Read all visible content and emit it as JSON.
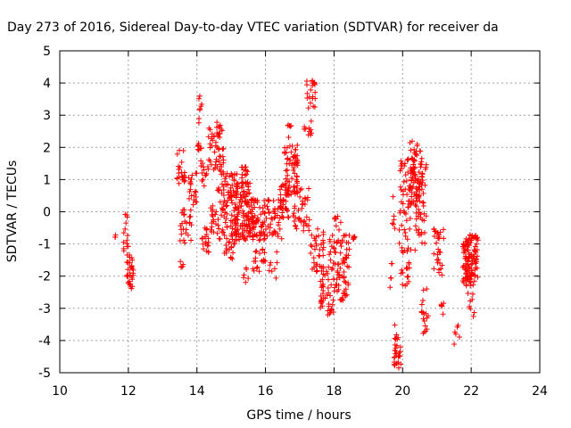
{
  "chart_data": {
    "type": "scatter",
    "title": "Day 273 of 2016, Sidereal Day-to-day VTEC variation (SDTVAR) for receiver da",
    "xlabel": "GPS time / hours",
    "ylabel": "SDTVAR / TECUs",
    "xlim": [
      10,
      24
    ],
    "ylim": [
      -5,
      5
    ],
    "xticks": [
      10,
      12,
      14,
      16,
      18,
      20,
      22,
      24
    ],
    "yticks": [
      -5,
      -4,
      -3,
      -2,
      -1,
      0,
      1,
      2,
      3,
      4,
      5
    ],
    "marker": "+",
    "colors": {
      "series": "#ff0000",
      "grid": "#a0a0a0"
    },
    "grid": true,
    "clusters": [
      {
        "x": [
          11.6,
          11.7
        ],
        "y": [
          -0.8,
          -0.7
        ],
        "n": 3
      },
      {
        "x": [
          11.85,
          12.0
        ],
        "y": [
          -1.6,
          -0.05
        ],
        "n": 18
      },
      {
        "x": [
          11.95,
          12.15
        ],
        "y": [
          -2.4,
          -1.3
        ],
        "n": 28
      },
      {
        "x": [
          13.4,
          13.65
        ],
        "y": [
          0.8,
          1.95
        ],
        "n": 22
      },
      {
        "x": [
          13.5,
          13.7
        ],
        "y": [
          -1.9,
          -1.5
        ],
        "n": 5
      },
      {
        "x": [
          13.5,
          13.85
        ],
        "y": [
          -1.0,
          0.1
        ],
        "n": 25
      },
      {
        "x": [
          13.75,
          14.0
        ],
        "y": [
          0.2,
          1.2
        ],
        "n": 20
      },
      {
        "x": [
          14.0,
          14.15
        ],
        "y": [
          1.9,
          2.2
        ],
        "n": 8
      },
      {
        "x": [
          14.05,
          14.15
        ],
        "y": [
          2.7,
          3.7
        ],
        "n": 8
      },
      {
        "x": [
          14.1,
          14.3
        ],
        "y": [
          0.8,
          1.6
        ],
        "n": 12
      },
      {
        "x": [
          14.15,
          14.4
        ],
        "y": [
          -1.35,
          -0.5
        ],
        "n": 18
      },
      {
        "x": [
          14.3,
          14.8
        ],
        "y": [
          1.2,
          2.6
        ],
        "n": 45
      },
      {
        "x": [
          14.4,
          14.6
        ],
        "y": [
          -0.7,
          0.3
        ],
        "n": 18
      },
      {
        "x": [
          14.55,
          14.7
        ],
        "y": [
          2.3,
          2.8
        ],
        "n": 10
      },
      {
        "x": [
          14.6,
          15.2
        ],
        "y": [
          -0.9,
          1.2
        ],
        "n": 90
      },
      {
        "x": [
          14.8,
          15.1
        ],
        "y": [
          -1.5,
          -0.7
        ],
        "n": 20
      },
      {
        "x": [
          15.1,
          15.55
        ],
        "y": [
          -0.9,
          0.9
        ],
        "n": 110
      },
      {
        "x": [
          15.3,
          15.5
        ],
        "y": [
          0.9,
          1.4
        ],
        "n": 15
      },
      {
        "x": [
          15.35,
          15.55
        ],
        "y": [
          -2.2,
          -1.7
        ],
        "n": 6
      },
      {
        "x": [
          15.55,
          16.0
        ],
        "y": [
          -0.9,
          0.4
        ],
        "n": 70
      },
      {
        "x": [
          15.6,
          16.0
        ],
        "y": [
          -1.9,
          -1.1
        ],
        "n": 20
      },
      {
        "x": [
          16.0,
          16.6
        ],
        "y": [
          -0.9,
          0.4
        ],
        "n": 45
      },
      {
        "x": [
          16.1,
          16.35
        ],
        "y": [
          -2.1,
          -1.2
        ],
        "n": 8
      },
      {
        "x": [
          16.4,
          16.7
        ],
        "y": [
          -0.2,
          0.9
        ],
        "n": 25
      },
      {
        "x": [
          16.55,
          16.95
        ],
        "y": [
          0.5,
          2.1
        ],
        "n": 75
      },
      {
        "x": [
          16.65,
          16.75
        ],
        "y": [
          2.1,
          2.7
        ],
        "n": 6
      },
      {
        "x": [
          16.8,
          17.0
        ],
        "y": [
          -0.6,
          0.3
        ],
        "n": 12
      },
      {
        "x": [
          17.0,
          17.3
        ],
        "y": [
          -0.6,
          0.8
        ],
        "n": 25
      },
      {
        "x": [
          17.1,
          17.35
        ],
        "y": [
          2.3,
          3.1
        ],
        "n": 10
      },
      {
        "x": [
          17.2,
          17.45
        ],
        "y": [
          3.1,
          4.15
        ],
        "n": 22
      },
      {
        "x": [
          17.3,
          17.7
        ],
        "y": [
          -1.9,
          -0.4
        ],
        "n": 35
      },
      {
        "x": [
          17.6,
          17.85
        ],
        "y": [
          -3.0,
          -1.7
        ],
        "n": 30
      },
      {
        "x": [
          17.8,
          18.0
        ],
        "y": [
          -3.3,
          -2.8
        ],
        "n": 10
      },
      {
        "x": [
          17.85,
          18.45
        ],
        "y": [
          -2.8,
          -0.7
        ],
        "n": 85
      },
      {
        "x": [
          18.0,
          18.2
        ],
        "y": [
          -0.6,
          -0.1
        ],
        "n": 8
      },
      {
        "x": [
          18.55,
          18.65
        ],
        "y": [
          -0.9,
          -0.55
        ],
        "n": 6
      },
      {
        "x": [
          19.55,
          19.7
        ],
        "y": [
          -2.6,
          -1.1
        ],
        "n": 5
      },
      {
        "x": [
          19.7,
          19.8
        ],
        "y": [
          -0.8,
          0.6
        ],
        "n": 6
      },
      {
        "x": [
          19.75,
          19.95
        ],
        "y": [
          -4.85,
          -3.4
        ],
        "n": 30
      },
      {
        "x": [
          19.9,
          20.3
        ],
        "y": [
          -1.3,
          1.8
        ],
        "n": 55
      },
      {
        "x": [
          19.95,
          20.2
        ],
        "y": [
          -2.3,
          -1.5
        ],
        "n": 15
      },
      {
        "x": [
          20.2,
          20.6
        ],
        "y": [
          0.2,
          2.2
        ],
        "n": 70
      },
      {
        "x": [
          20.35,
          20.7
        ],
        "y": [
          -1.3,
          1.5
        ],
        "n": 50
      },
      {
        "x": [
          20.55,
          20.75
        ],
        "y": [
          -3.8,
          -2.3
        ],
        "n": 18
      },
      {
        "x": [
          20.9,
          21.2
        ],
        "y": [
          -2.0,
          -0.5
        ],
        "n": 30
      },
      {
        "x": [
          21.1,
          21.2
        ],
        "y": [
          -3.3,
          -2.8
        ],
        "n": 5
      },
      {
        "x": [
          21.5,
          21.7
        ],
        "y": [
          -4.3,
          -3.4
        ],
        "n": 6
      },
      {
        "x": [
          21.75,
          22.2
        ],
        "y": [
          -2.3,
          -0.7
        ],
        "n": 120
      },
      {
        "x": [
          21.9,
          22.1
        ],
        "y": [
          -3.3,
          -2.5
        ],
        "n": 8
      }
    ]
  }
}
